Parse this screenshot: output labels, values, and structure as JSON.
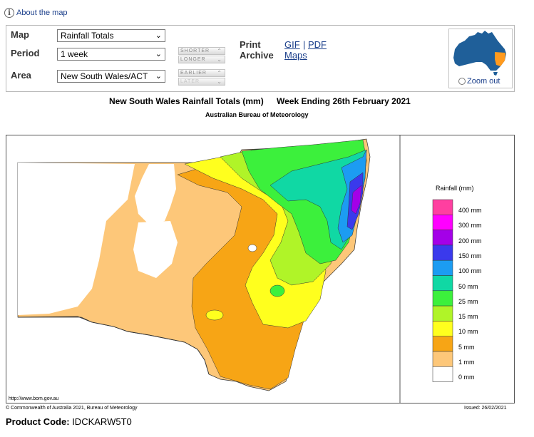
{
  "about": {
    "label": "About the map"
  },
  "controls": {
    "map": {
      "label": "Map",
      "value": "Rainfall Totals"
    },
    "period": {
      "label": "Period",
      "value": "1 week"
    },
    "area": {
      "label": "Area",
      "value": "New South Wales/ACT"
    },
    "shorter_label": "SHORTER",
    "longer_label": "LONGER",
    "earlier_label": "EARLIER",
    "later_label": "LATER",
    "print_label": "Print",
    "archive_label": "Archive",
    "gif_label": "GIF",
    "pdf_label": "PDF",
    "maps_label": "Maps",
    "separator": "|",
    "zoom_out_label": "Zoom out"
  },
  "map": {
    "title": "New South Wales Rainfall Totals (mm)",
    "week": "Week Ending 26th February 2021",
    "subtitle": "Australian Bureau of Meteorology",
    "website": "http://www.bom.gov.au",
    "copyright": "© Commonwealth of Australia 2021, Bureau of Meteorology",
    "issued": "Issued: 26/02/2021"
  },
  "legend": {
    "title": "Rainfall (mm)",
    "labels": [
      "400 mm",
      "300 mm",
      "200 mm",
      "150 mm",
      "100 mm",
      "50 mm",
      "25 mm",
      "15 mm",
      "10 mm",
      "5 mm",
      "1 mm",
      "0 mm"
    ],
    "colors": [
      "#ff3fa0",
      "#ff00ff",
      "#a400e8",
      "#3a3aec",
      "#1c9cf2",
      "#10d8a4",
      "#3cf03c",
      "#b0f428",
      "#ffff1e",
      "#f7a515",
      "#fdc779",
      "#ffffff"
    ]
  },
  "product": {
    "label": "Product Code:",
    "value": "IDCKARW5T0"
  },
  "colors": {
    "link": "#1a3e8a",
    "thumb_land": "#1f5f99",
    "thumb_highlight": "#ff9a1e"
  }
}
